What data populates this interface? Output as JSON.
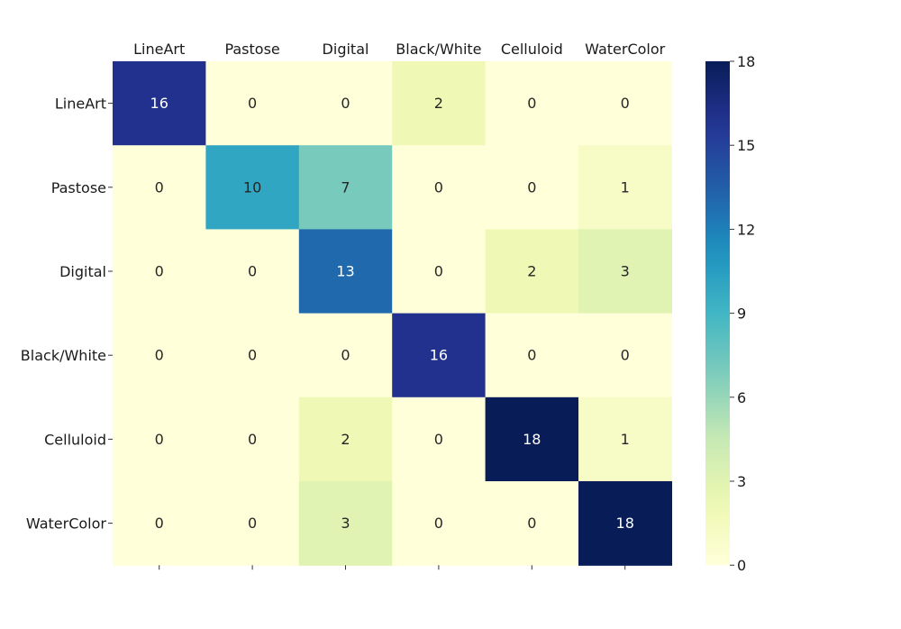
{
  "chart_data": {
    "type": "heatmap",
    "title": "",
    "xlabel": "",
    "ylabel": "",
    "x_categories": [
      "LineArt",
      "Pastose",
      "Digital",
      "Black/White",
      "Celluloid",
      "WaterColor"
    ],
    "y_categories": [
      "LineArt",
      "Pastose",
      "Digital",
      "Black/White",
      "Celluloid",
      "WaterColor"
    ],
    "values": [
      [
        16,
        0,
        0,
        2,
        0,
        0
      ],
      [
        0,
        10,
        7,
        0,
        0,
        1
      ],
      [
        0,
        0,
        13,
        0,
        2,
        3
      ],
      [
        0,
        0,
        0,
        16,
        0,
        0
      ],
      [
        0,
        0,
        2,
        0,
        18,
        1
      ],
      [
        0,
        0,
        3,
        0,
        0,
        18
      ]
    ],
    "colorbar": {
      "min": 0,
      "max": 18,
      "ticks": [
        0,
        3,
        6,
        9,
        12,
        15,
        18
      ],
      "colormap": "YlGnBu"
    },
    "x_axis_position": "top",
    "annotated": true
  }
}
